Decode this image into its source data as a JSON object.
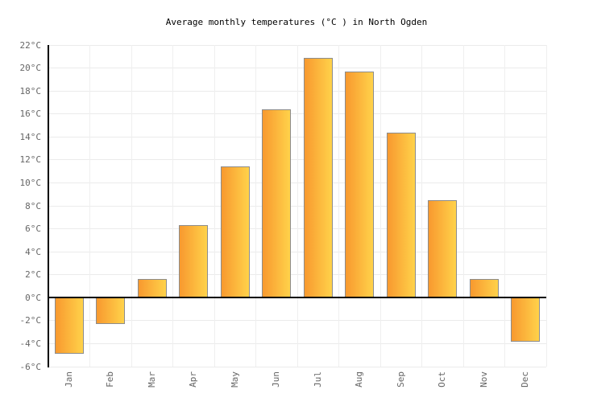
{
  "chart_data": {
    "type": "bar",
    "title": "Average monthly temperatures (°C ) in North Ogden",
    "categories": [
      "Jan",
      "Feb",
      "Mar",
      "Apr",
      "May",
      "Jun",
      "Jul",
      "Aug",
      "Sep",
      "Oct",
      "Nov",
      "Dec"
    ],
    "values": [
      -4.9,
      -2.3,
      1.6,
      6.3,
      11.4,
      16.4,
      20.9,
      19.7,
      14.4,
      8.5,
      1.6,
      -3.8
    ],
    "unit": "°C",
    "xlabel": "",
    "ylabel": "",
    "ylim": [
      -6,
      22
    ],
    "ytick_step": 2,
    "y_tick_values": [
      22,
      20,
      18,
      16,
      14,
      12,
      10,
      8,
      6,
      4,
      2,
      0,
      -2,
      -4,
      -6
    ],
    "y_tick_labels": [
      "22°C",
      "20°C",
      "18°C",
      "16°C",
      "14°C",
      "12°C",
      "10°C",
      "8°C",
      "6°C",
      "4°C",
      "2°C",
      "0°C",
      "-2°C",
      "-4°C",
      "-6°C"
    ],
    "grid": true,
    "legend_position": "none",
    "colors": {
      "bar_gradient_left": "#F8992F",
      "bar_gradient_right": "#FFD24A",
      "bar_border": "#8C8C8C",
      "axis": "#000000",
      "gridline": "#EBEBEB",
      "tick_label": "#666666",
      "title_text": "#000000",
      "background": "#FFFFFF"
    }
  }
}
